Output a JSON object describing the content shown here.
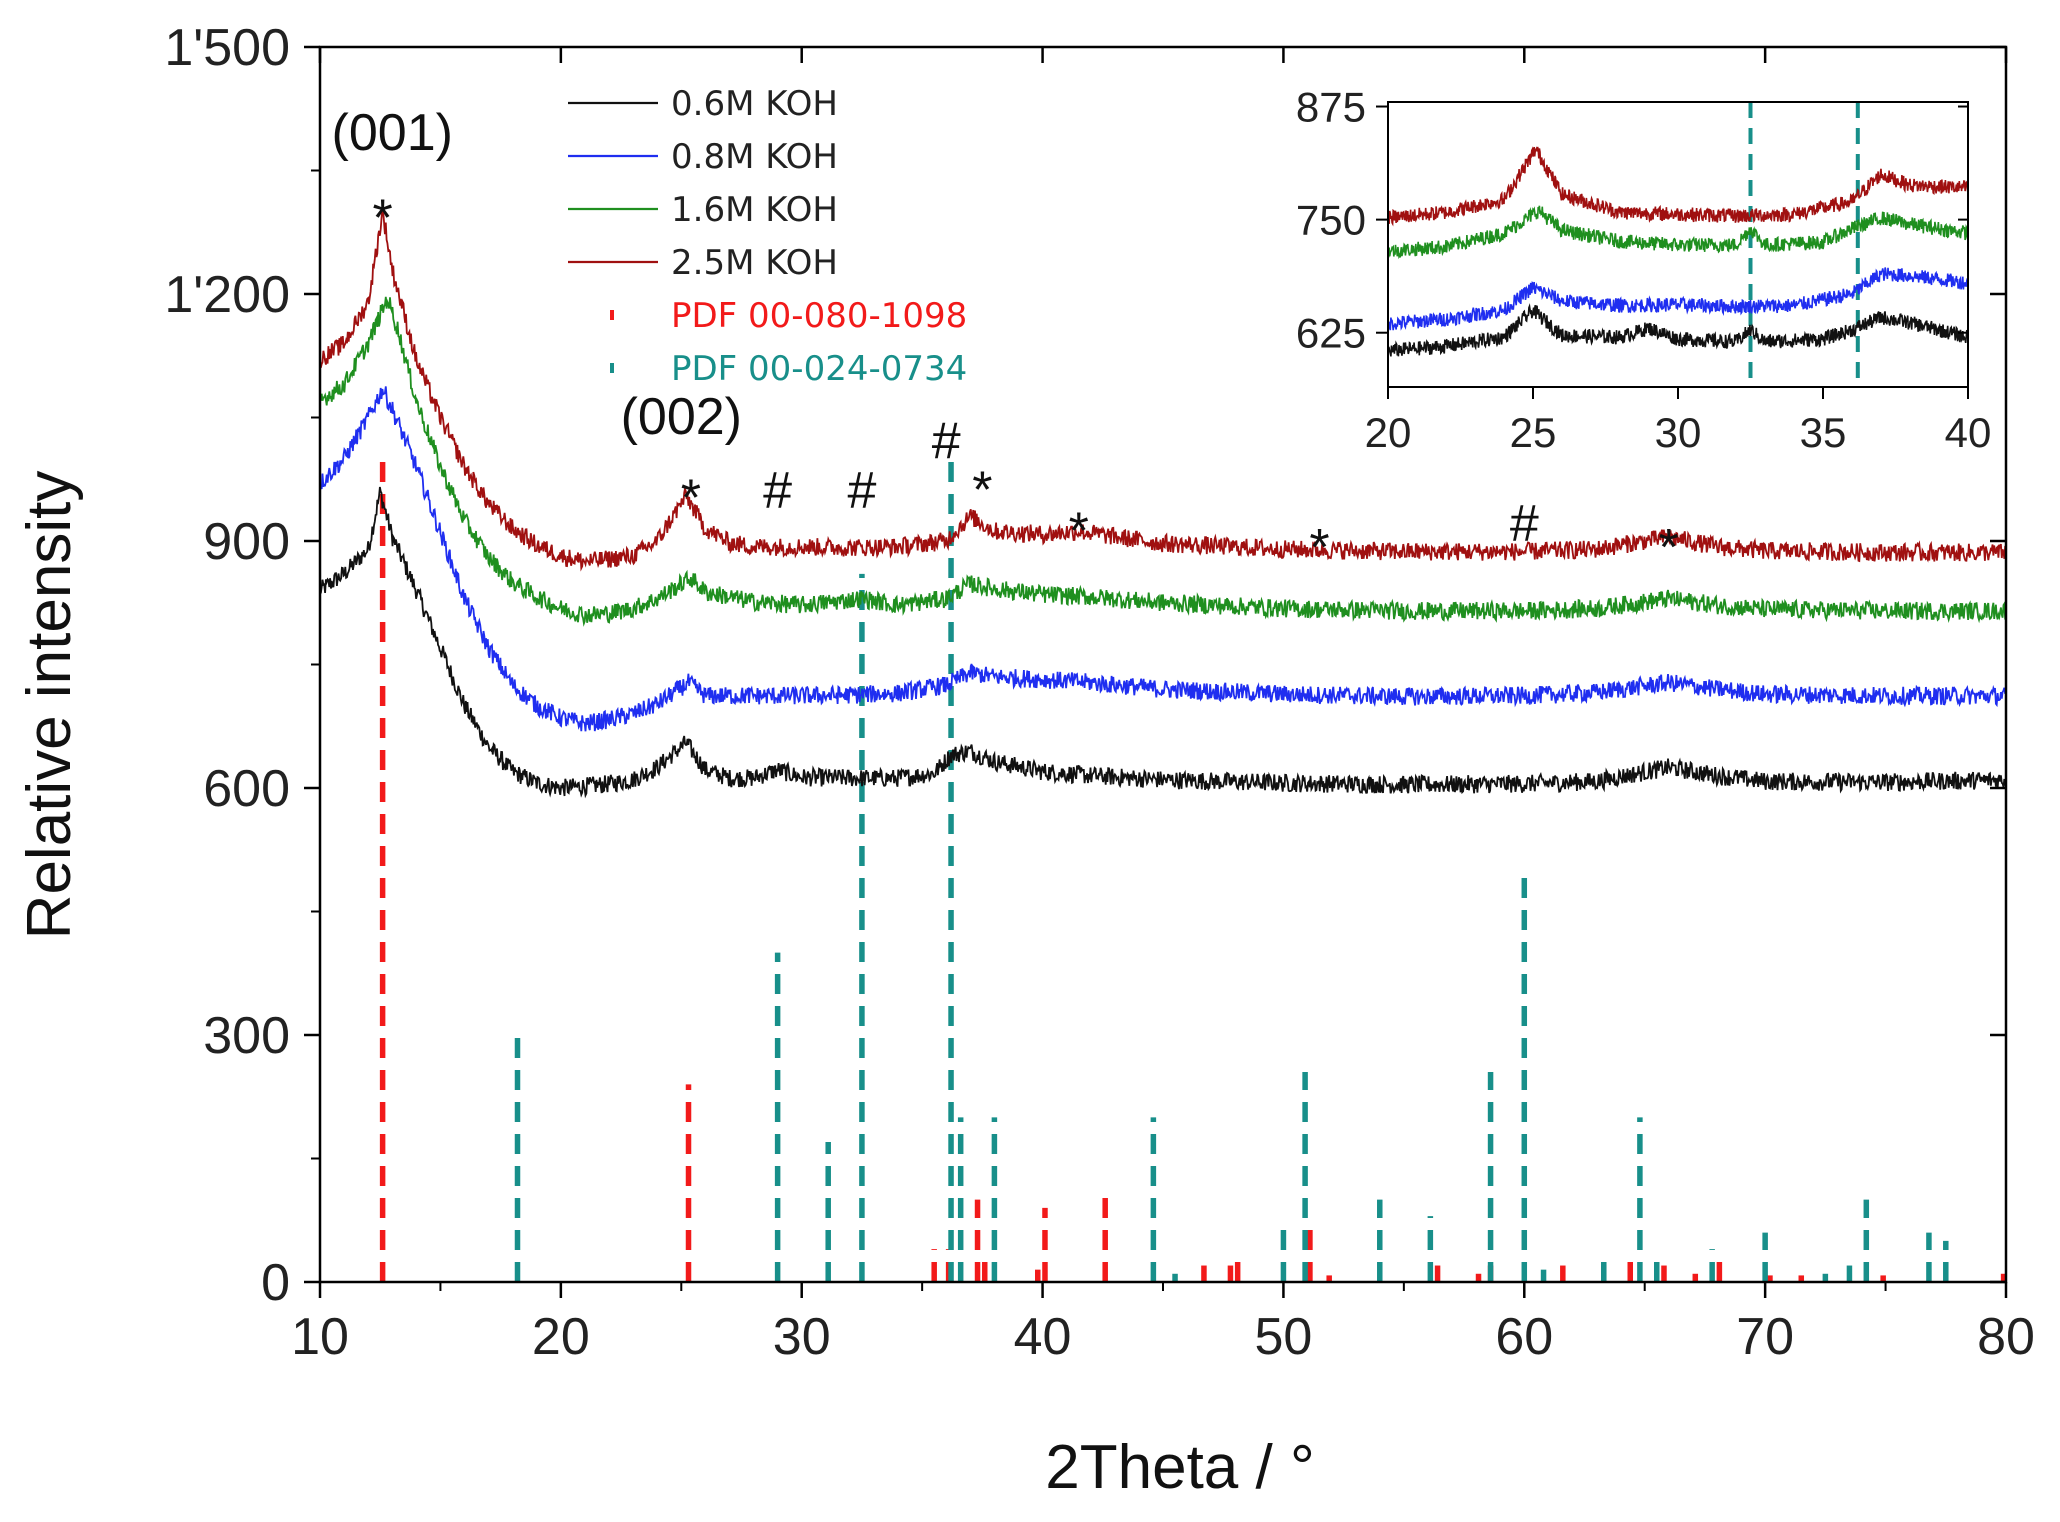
{
  "chart_data": {
    "type": "line",
    "xlabel": "2Theta / °",
    "ylabel": "Relative intensity",
    "xlim": [
      10,
      80
    ],
    "ylim": [
      0,
      1500
    ],
    "x_ticks": [
      "10",
      "20",
      "30",
      "40",
      "50",
      "60",
      "70",
      "80"
    ],
    "y_ticks": [
      "0",
      "300",
      "600",
      "900",
      "1'200",
      "1'500"
    ],
    "series": [
      {
        "name": "0.6M KOH",
        "color": "#111111",
        "baseline": 600,
        "points": [
          [
            10,
            840
          ],
          [
            11,
            860
          ],
          [
            12,
            890
          ],
          [
            12.5,
            960
          ],
          [
            13,
            905
          ],
          [
            14,
            840
          ],
          [
            15,
            770
          ],
          [
            16,
            700
          ],
          [
            17,
            650
          ],
          [
            18,
            620
          ],
          [
            19,
            606
          ],
          [
            20,
            600
          ],
          [
            21,
            602
          ],
          [
            22,
            605
          ],
          [
            23,
            610
          ],
          [
            24,
            625
          ],
          [
            25.2,
            655
          ],
          [
            26,
            622
          ],
          [
            27,
            612
          ],
          [
            28,
            612
          ],
          [
            29,
            622
          ],
          [
            30,
            613
          ],
          [
            32,
            612
          ],
          [
            34,
            612
          ],
          [
            35.5,
            618
          ],
          [
            36.2,
            640
          ],
          [
            37,
            645
          ],
          [
            38,
            632
          ],
          [
            40,
            620
          ],
          [
            42,
            615
          ],
          [
            45,
            610
          ],
          [
            50,
            606
          ],
          [
            55,
            604
          ],
          [
            60,
            605
          ],
          [
            63,
            608
          ],
          [
            66,
            625
          ],
          [
            68,
            615
          ],
          [
            70,
            608
          ],
          [
            75,
            607
          ],
          [
            80,
            610
          ]
        ]
      },
      {
        "name": "0.8M KOH",
        "color": "#1f2ef0",
        "baseline": 710,
        "points": [
          [
            10,
            970
          ],
          [
            11,
            1000
          ],
          [
            12,
            1050
          ],
          [
            12.6,
            1085
          ],
          [
            13,
            1060
          ],
          [
            14,
            990
          ],
          [
            15,
            910
          ],
          [
            16,
            830
          ],
          [
            17,
            770
          ],
          [
            18,
            725
          ],
          [
            19,
            700
          ],
          [
            20,
            685
          ],
          [
            21,
            678
          ],
          [
            22,
            683
          ],
          [
            23,
            690
          ],
          [
            24,
            702
          ],
          [
            25.3,
            728
          ],
          [
            26,
            712
          ],
          [
            28,
            712
          ],
          [
            30,
            712
          ],
          [
            32,
            713
          ],
          [
            34,
            715
          ],
          [
            36,
            725
          ],
          [
            37,
            740
          ],
          [
            38,
            735
          ],
          [
            40,
            732
          ],
          [
            42,
            728
          ],
          [
            45,
            720
          ],
          [
            50,
            714
          ],
          [
            55,
            711
          ],
          [
            60,
            712
          ],
          [
            63,
            716
          ],
          [
            66,
            728
          ],
          [
            68,
            720
          ],
          [
            70,
            714
          ],
          [
            75,
            712
          ],
          [
            80,
            712
          ]
        ]
      },
      {
        "name": "1.6M KOH",
        "color": "#1f8f1f",
        "baseline": 815,
        "points": [
          [
            10,
            1070
          ],
          [
            11,
            1090
          ],
          [
            12,
            1140
          ],
          [
            12.8,
            1195
          ],
          [
            13.2,
            1160
          ],
          [
            14,
            1070
          ],
          [
            15,
            990
          ],
          [
            16,
            925
          ],
          [
            17,
            880
          ],
          [
            18,
            850
          ],
          [
            19,
            832
          ],
          [
            20,
            818
          ],
          [
            21,
            810
          ],
          [
            22,
            812
          ],
          [
            23,
            818
          ],
          [
            24,
            830
          ],
          [
            25.4,
            855
          ],
          [
            26,
            838
          ],
          [
            28,
            826
          ],
          [
            30,
            822
          ],
          [
            32.5,
            830
          ],
          [
            34,
            822
          ],
          [
            36,
            830
          ],
          [
            37,
            848
          ],
          [
            38,
            842
          ],
          [
            40,
            835
          ],
          [
            42,
            832
          ],
          [
            45,
            825
          ],
          [
            50,
            818
          ],
          [
            55,
            815
          ],
          [
            60,
            815
          ],
          [
            63,
            818
          ],
          [
            66,
            830
          ],
          [
            68,
            822
          ],
          [
            70,
            817
          ],
          [
            75,
            815
          ],
          [
            80,
            815
          ]
        ]
      },
      {
        "name": "2.5M KOH",
        "color": "#a01010",
        "baseline": 885,
        "points": [
          [
            10,
            1120
          ],
          [
            11,
            1140
          ],
          [
            12,
            1190
          ],
          [
            12.6,
            1300
          ],
          [
            13,
            1230
          ],
          [
            14,
            1120
          ],
          [
            15,
            1050
          ],
          [
            16,
            990
          ],
          [
            17,
            945
          ],
          [
            18,
            915
          ],
          [
            19,
            895
          ],
          [
            20,
            882
          ],
          [
            21,
            875
          ],
          [
            22,
            878
          ],
          [
            23,
            882
          ],
          [
            24,
            900
          ],
          [
            25.2,
            955
          ],
          [
            26,
            915
          ],
          [
            27,
            898
          ],
          [
            28,
            893
          ],
          [
            30,
            893
          ],
          [
            32,
            892
          ],
          [
            34,
            893
          ],
          [
            36,
            900
          ],
          [
            37,
            930
          ],
          [
            38,
            912
          ],
          [
            40,
            908
          ],
          [
            41.5,
            912
          ],
          [
            43,
            905
          ],
          [
            45,
            897
          ],
          [
            50,
            890
          ],
          [
            55,
            887
          ],
          [
            60,
            887
          ],
          [
            63,
            890
          ],
          [
            66,
            905
          ],
          [
            68,
            893
          ],
          [
            70,
            888
          ],
          [
            75,
            886
          ],
          [
            80,
            886
          ]
        ]
      }
    ],
    "reference_patterns": [
      {
        "name": "PDF 00-080-1098",
        "color": "#f21a1a",
        "lines": [
          [
            12.6,
            1000
          ],
          [
            25.3,
            240
          ],
          [
            35.5,
            40
          ],
          [
            36.1,
            40
          ],
          [
            37.3,
            100
          ],
          [
            37.6,
            30
          ],
          [
            39.8,
            15
          ],
          [
            40.1,
            90
          ],
          [
            42.6,
            110
          ],
          [
            46.7,
            20
          ],
          [
            47.8,
            20
          ],
          [
            48.1,
            30
          ],
          [
            51.1,
            70
          ],
          [
            51.9,
            8
          ],
          [
            56.4,
            20
          ],
          [
            58.1,
            10
          ],
          [
            58.6,
            20
          ],
          [
            61.6,
            20
          ],
          [
            63.3,
            20
          ],
          [
            64.4,
            30
          ],
          [
            65.8,
            20
          ],
          [
            67.1,
            10
          ],
          [
            68.1,
            25
          ],
          [
            70.2,
            8
          ],
          [
            71.5,
            8
          ],
          [
            74.9,
            8
          ],
          [
            79.9,
            10
          ]
        ]
      },
      {
        "name": "PDF 00-024-0734",
        "color": "#188f8a",
        "lines": [
          [
            18.2,
            300
          ],
          [
            29.0,
            400
          ],
          [
            31.1,
            170
          ],
          [
            32.5,
            860
          ],
          [
            36.2,
            1000
          ],
          [
            36.6,
            200
          ],
          [
            38.0,
            200
          ],
          [
            44.6,
            200
          ],
          [
            45.5,
            10
          ],
          [
            50.0,
            70
          ],
          [
            50.9,
            255
          ],
          [
            54.0,
            100
          ],
          [
            56.1,
            80
          ],
          [
            58.6,
            255
          ],
          [
            60.0,
            500
          ],
          [
            60.8,
            15
          ],
          [
            63.3,
            30
          ],
          [
            64.8,
            200
          ],
          [
            65.5,
            30
          ],
          [
            67.8,
            40
          ],
          [
            70.0,
            60
          ],
          [
            72.5,
            10
          ],
          [
            73.5,
            20
          ],
          [
            74.2,
            100
          ],
          [
            76.8,
            60
          ],
          [
            77.5,
            50
          ]
        ]
      }
    ],
    "annotations": [
      {
        "text": "(001)",
        "x": 13.0,
        "y": 1375
      },
      {
        "text": "*",
        "x": 12.6,
        "y": 1305
      },
      {
        "text": "(002)",
        "x": 25.0,
        "y": 1030
      },
      {
        "text": "*",
        "x": 25.4,
        "y": 965
      },
      {
        "text": "#",
        "x": 29.0,
        "y": 940
      },
      {
        "text": "#",
        "x": 32.5,
        "y": 940
      },
      {
        "text": "#",
        "x": 36.0,
        "y": 1000
      },
      {
        "text": "*",
        "x": 37.5,
        "y": 975
      },
      {
        "text": "*",
        "x": 41.5,
        "y": 925
      },
      {
        "text": "*",
        "x": 51.5,
        "y": 905
      },
      {
        "text": "#",
        "x": 60.0,
        "y": 900
      },
      {
        "text": "*",
        "x": 66.0,
        "y": 905
      }
    ],
    "legend_location": "upper-center",
    "inset": {
      "xlim": [
        20,
        40
      ],
      "ylim": [
        565,
        880
      ],
      "x_ticks": [
        "20",
        "25",
        "30",
        "35",
        "40"
      ],
      "y_ticks": [
        "625",
        "750",
        "875"
      ],
      "reference_x": [
        32.5,
        36.2
      ],
      "location": "upper-right"
    }
  }
}
